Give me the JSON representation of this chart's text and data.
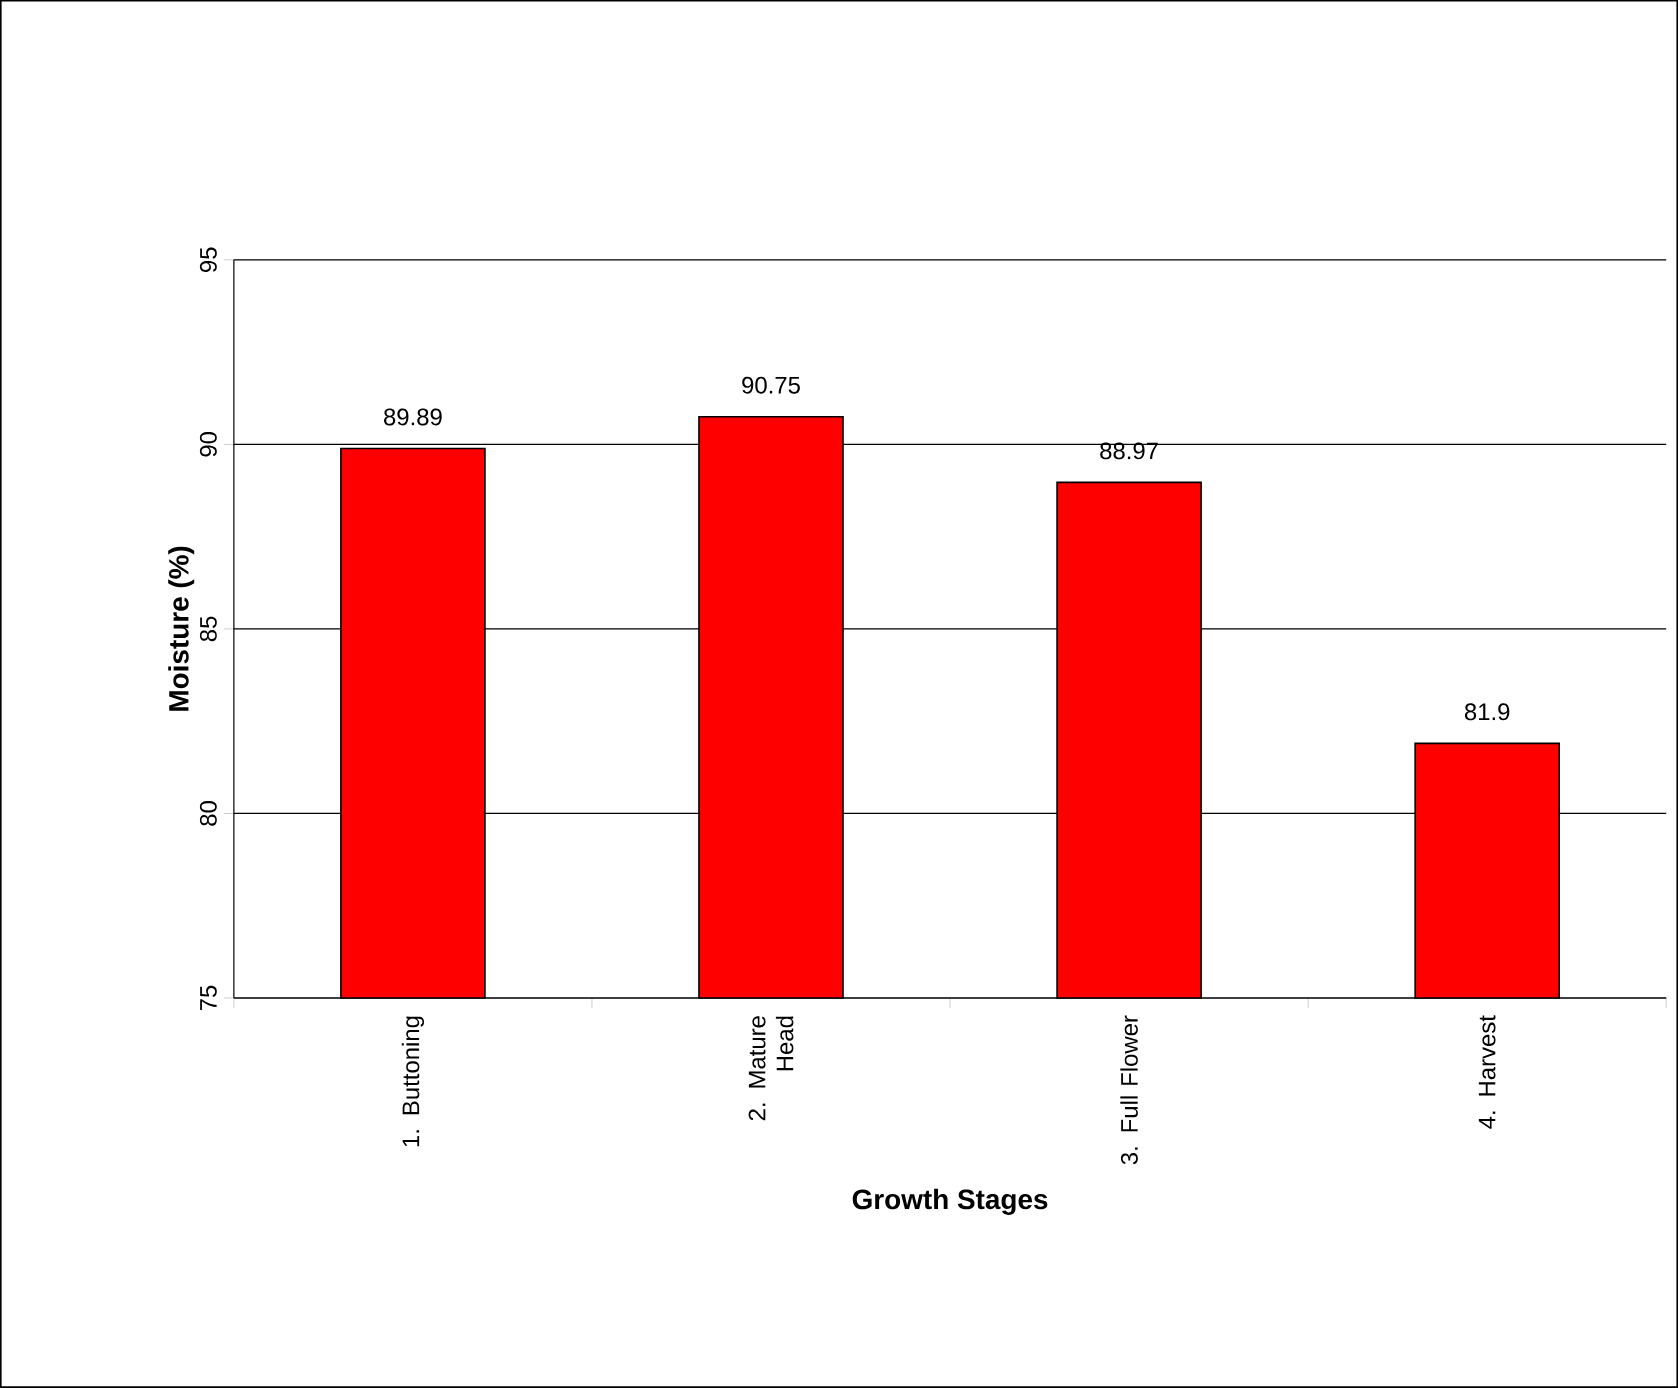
{
  "chart_data": {
    "type": "bar",
    "xlabel": "Growth Stages",
    "ylabel": "Moisture (%)",
    "categories": [
      "1. Buttoning",
      "2. Mature Head",
      "3. Full Flower",
      "4. Harvest"
    ],
    "values": [
      89.89,
      90.75,
      88.97,
      81.9
    ],
    "color": "#ff0000",
    "ylim": [
      75,
      95
    ],
    "yticks": [
      75,
      80,
      85,
      90,
      95
    ],
    "grid": "y",
    "data_labels": true
  }
}
